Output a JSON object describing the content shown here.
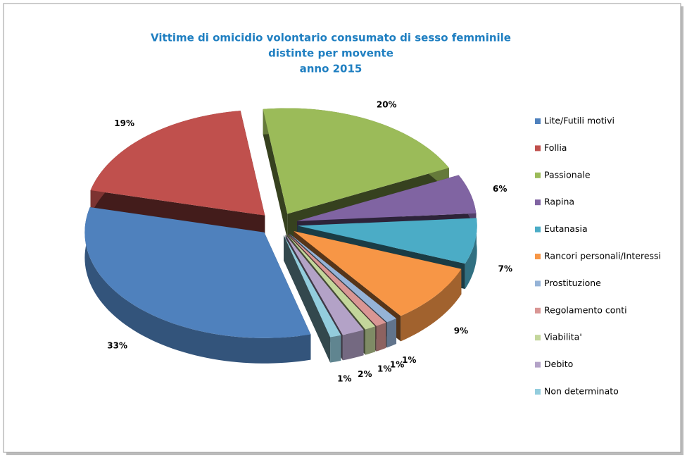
{
  "chart_data": {
    "type": "pie3d",
    "title": [
      "Vittime di omicidio volontario consumato di sesso femminile",
      "distinte per movente",
      "anno 2015"
    ],
    "categories": [
      "Lite/Futili motivi",
      "Follia",
      "Passionale",
      "Rapina",
      "Eutanasia",
      "Rancori personali/Interessi",
      "Prostituzione",
      "Regolamento conti",
      "Viabilita'",
      "Debito",
      "Non determinato"
    ],
    "values": [
      33,
      19,
      20,
      6,
      7,
      9,
      1,
      1,
      1,
      2,
      1
    ],
    "value_labels": [
      "33%",
      "19%",
      "20%",
      "6%",
      "7%",
      "9%",
      "1%",
      "1%",
      "1%",
      "2%",
      "1%"
    ],
    "colors": [
      "#4f81bd",
      "#c0504d",
      "#9bbb59",
      "#8064a2",
      "#4bacc6",
      "#f79646",
      "#95b3d7",
      "#d99694",
      "#c3d69b",
      "#b3a2c7",
      "#93cddd"
    ],
    "legend": "right"
  }
}
